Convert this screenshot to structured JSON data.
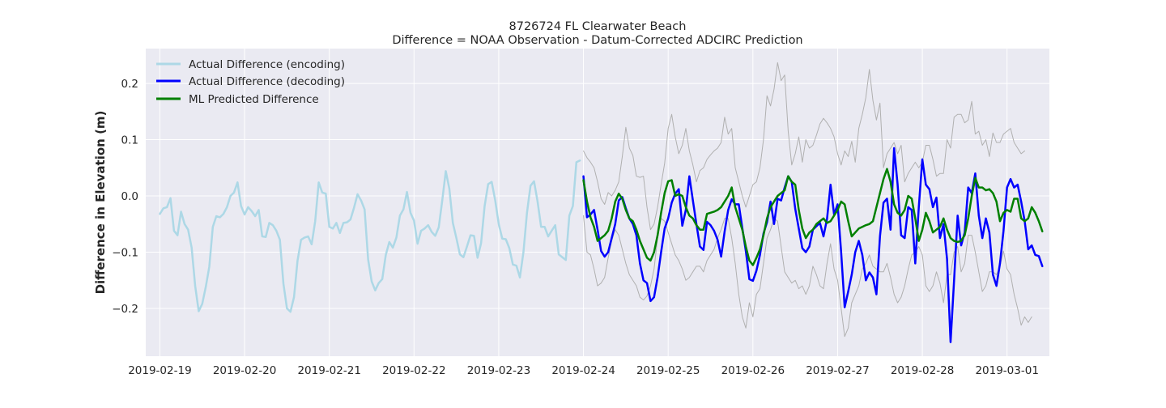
{
  "chart_data": {
    "type": "line",
    "title": "8726724 FL Clearwater Beach",
    "subtitle": "Difference = NOAA Observation - Datum-Corrected ADCIRC Prediction",
    "xlabel": "",
    "ylabel": "Difference in Elevation (m)",
    "xlim": [
      "2019-02-18 20:00",
      "2019-03-01 12:00"
    ],
    "ylim": [
      -0.285,
      0.262
    ],
    "x_tick_labels": [
      "2019-02-19",
      "2019-02-20",
      "2019-02-21",
      "2019-02-22",
      "2019-02-23",
      "2019-02-24",
      "2019-02-25",
      "2019-02-26",
      "2019-02-27",
      "2019-02-28",
      "2019-03-01"
    ],
    "y_ticks": [
      -0.2,
      -0.1,
      0.0,
      0.1,
      0.2
    ],
    "y_tick_labels": [
      "−0.2",
      "−0.1",
      "0.0",
      "0.1",
      "0.2"
    ],
    "grid": true,
    "legend_position": "top-left",
    "colors": {
      "plot_background": "#eaeaf2",
      "grid": "#ffffff",
      "encoding": "#add8e6",
      "decoding": "#0000ff",
      "predicted": "#008000",
      "band": "#b0b0b0"
    },
    "series": [
      {
        "name": "Actual Difference (encoding)",
        "color": "#add8e6",
        "x_start": "2019-02-19 00:00",
        "x_step_hours": 1,
        "y": [
          -0.032,
          -0.022,
          -0.02,
          -0.004,
          -0.062,
          -0.07,
          -0.028,
          -0.05,
          -0.06,
          -0.092,
          -0.16,
          -0.205,
          -0.192,
          -0.162,
          -0.126,
          -0.055,
          -0.036,
          -0.038,
          -0.032,
          -0.02,
          0.0,
          0.006,
          0.024,
          -0.018,
          -0.033,
          -0.02,
          -0.027,
          -0.036,
          -0.025,
          -0.072,
          -0.073,
          -0.048,
          -0.052,
          -0.062,
          -0.078,
          -0.156,
          -0.2,
          -0.206,
          -0.18,
          -0.115,
          -0.078,
          -0.074,
          -0.072,
          -0.086,
          -0.045,
          0.024,
          0.006,
          0.004,
          -0.055,
          -0.058,
          -0.048,
          -0.066,
          -0.048,
          -0.047,
          -0.042,
          -0.021,
          0.003,
          -0.008,
          -0.024,
          -0.113,
          -0.152,
          -0.168,
          -0.155,
          -0.148,
          -0.105,
          -0.082,
          -0.092,
          -0.074,
          -0.035,
          -0.024,
          0.007,
          -0.03,
          -0.044,
          -0.085,
          -0.062,
          -0.058,
          -0.052,
          -0.064,
          -0.071,
          -0.056,
          -0.008,
          0.044,
          0.013,
          -0.048,
          -0.075,
          -0.104,
          -0.109,
          -0.09,
          -0.07,
          -0.071,
          -0.11,
          -0.084,
          -0.018,
          0.021,
          0.025,
          -0.008,
          -0.05,
          -0.076,
          -0.077,
          -0.093,
          -0.122,
          -0.124,
          -0.145,
          -0.1,
          -0.03,
          0.018,
          0.026,
          -0.01,
          -0.055,
          -0.055,
          -0.072,
          -0.062,
          -0.052,
          -0.104,
          -0.109,
          -0.114,
          -0.035,
          -0.018,
          0.06,
          0.063
        ]
      },
      {
        "name": "Actual Difference (decoding)",
        "color": "#0000ff",
        "x_start": "2019-02-24 00:00",
        "x_step_hours": 1,
        "y": [
          0.035,
          -0.038,
          -0.033,
          -0.025,
          -0.06,
          -0.098,
          -0.108,
          -0.1,
          -0.075,
          -0.05,
          -0.008,
          -0.002,
          -0.022,
          -0.04,
          -0.05,
          -0.07,
          -0.12,
          -0.15,
          -0.155,
          -0.187,
          -0.18,
          -0.145,
          -0.1,
          -0.058,
          -0.04,
          -0.012,
          0.004,
          0.012,
          -0.053,
          -0.025,
          0.035,
          -0.008,
          -0.05,
          -0.09,
          -0.096,
          -0.046,
          -0.052,
          -0.062,
          -0.078,
          -0.108,
          -0.063,
          -0.025,
          -0.006,
          -0.015,
          -0.015,
          -0.057,
          -0.098,
          -0.148,
          -0.151,
          -0.133,
          -0.105,
          -0.067,
          -0.047,
          -0.01,
          -0.05,
          -0.005,
          -0.008,
          0.015,
          0.035,
          0.025,
          -0.023,
          -0.058,
          -0.093,
          -0.1,
          -0.09,
          -0.06,
          -0.054,
          -0.048,
          -0.072,
          -0.041,
          0.02,
          -0.033,
          -0.015,
          -0.1,
          -0.198,
          -0.17,
          -0.14,
          -0.1,
          -0.08,
          -0.105,
          -0.15,
          -0.136,
          -0.145,
          -0.175,
          -0.072,
          -0.012,
          -0.005,
          -0.06,
          0.085,
          0.02,
          -0.07,
          -0.075,
          -0.02,
          -0.025,
          -0.12,
          -0.02,
          0.065,
          0.02,
          0.012,
          -0.02,
          -0.003,
          -0.075,
          -0.05,
          -0.112,
          -0.26,
          -0.15,
          -0.035,
          -0.088,
          -0.065,
          0.015,
          0.005,
          0.04,
          -0.035,
          -0.075,
          -0.04,
          -0.065,
          -0.14,
          -0.16,
          -0.12,
          -0.062,
          0.015,
          0.03,
          0.015,
          0.02,
          -0.01,
          -0.045,
          -0.095,
          -0.088,
          -0.105,
          -0.107,
          -0.125
        ]
      },
      {
        "name": "ML Predicted Difference",
        "color": "#008000",
        "x_start": "2019-02-24 00:00",
        "x_step_hours": 1,
        "y": [
          0.028,
          -0.01,
          -0.038,
          -0.055,
          -0.08,
          -0.075,
          -0.07,
          -0.062,
          -0.04,
          -0.01,
          0.004,
          -0.005,
          -0.025,
          -0.04,
          -0.045,
          -0.06,
          -0.08,
          -0.095,
          -0.11,
          -0.115,
          -0.1,
          -0.07,
          -0.03,
          0.005,
          0.026,
          0.028,
          0.0,
          0.003,
          0.0,
          -0.02,
          -0.035,
          -0.04,
          -0.052,
          -0.06,
          -0.06,
          -0.032,
          -0.03,
          -0.028,
          -0.025,
          -0.02,
          -0.01,
          0.0,
          0.015,
          -0.02,
          -0.04,
          -0.06,
          -0.09,
          -0.115,
          -0.123,
          -0.11,
          -0.095,
          -0.07,
          -0.04,
          -0.02,
          -0.01,
          0.0,
          0.005,
          0.01,
          0.035,
          0.025,
          0.02,
          -0.025,
          -0.058,
          -0.075,
          -0.065,
          -0.06,
          -0.05,
          -0.045,
          -0.04,
          -0.048,
          -0.045,
          -0.035,
          -0.025,
          -0.01,
          -0.015,
          -0.045,
          -0.072,
          -0.065,
          -0.058,
          -0.055,
          -0.052,
          -0.05,
          -0.045,
          -0.02,
          0.005,
          0.03,
          0.048,
          0.025,
          -0.015,
          -0.03,
          -0.035,
          -0.025,
          0.0,
          -0.005,
          -0.04,
          -0.08,
          -0.06,
          -0.03,
          -0.045,
          -0.065,
          -0.06,
          -0.055,
          -0.04,
          -0.06,
          -0.075,
          -0.08,
          -0.082,
          -0.08,
          -0.07,
          -0.04,
          0.0,
          0.032,
          0.015,
          0.015,
          0.01,
          0.012,
          0.005,
          -0.01,
          -0.045,
          -0.03,
          -0.025,
          -0.028,
          -0.005,
          -0.005,
          -0.04,
          -0.045,
          -0.04,
          -0.02,
          -0.03,
          -0.045,
          -0.063
        ]
      },
      {
        "name": "",
        "color": "#b0b0b0",
        "x_start": "2019-02-24 00:00",
        "x_step_hours": 1,
        "y": [
          0.08,
          0.068,
          0.06,
          0.05,
          0.025,
          -0.005,
          -0.015,
          0.006,
          0.0,
          0.01,
          0.025,
          0.07,
          0.122,
          0.085,
          0.072,
          0.035,
          0.033,
          0.035,
          -0.02,
          -0.06,
          -0.05,
          -0.02,
          0.02,
          0.058,
          0.12,
          0.145,
          0.105,
          0.075,
          0.09,
          0.12,
          0.08,
          0.055,
          0.025,
          0.045,
          0.05,
          0.065,
          0.073,
          0.08,
          0.085,
          0.095,
          0.14,
          0.11,
          0.12,
          0.05,
          0.025,
          0.0,
          -0.02,
          0.0,
          0.02,
          0.025,
          0.05,
          0.1,
          0.178,
          0.16,
          0.19,
          0.237,
          0.205,
          0.215,
          0.115,
          0.055,
          0.075,
          0.105,
          0.06,
          0.1,
          0.085,
          0.09,
          0.108,
          0.128,
          0.138,
          0.13,
          0.12,
          0.105,
          0.075,
          0.055,
          0.08,
          0.07,
          0.097,
          0.06,
          0.12,
          0.145,
          0.175,
          0.225,
          0.17,
          0.135,
          0.165,
          0.05,
          0.075,
          0.085,
          0.095,
          0.075,
          0.09,
          0.025,
          0.04,
          0.05,
          0.06,
          0.05,
          0.06,
          0.09,
          0.09,
          0.065,
          0.035,
          0.04,
          0.04,
          0.1,
          0.085,
          0.14,
          0.145,
          0.145,
          0.13,
          0.135,
          0.168,
          0.11,
          0.115,
          0.09,
          0.1,
          0.07,
          0.112,
          0.095,
          0.095,
          0.11,
          0.115,
          0.12,
          0.095,
          0.085,
          0.075,
          0.08
        ]
      },
      {
        "name": "",
        "color": "#b0b0b0",
        "x_start": "2019-02-24 00:00",
        "x_step_hours": 1,
        "y": [
          -0.035,
          -0.1,
          -0.105,
          -0.13,
          -0.16,
          -0.155,
          -0.145,
          -0.11,
          -0.08,
          -0.06,
          -0.07,
          -0.095,
          -0.12,
          -0.14,
          -0.15,
          -0.16,
          -0.18,
          -0.185,
          -0.178,
          -0.16,
          -0.13,
          -0.075,
          -0.04,
          -0.045,
          -0.065,
          -0.085,
          -0.105,
          -0.115,
          -0.13,
          -0.15,
          -0.145,
          -0.135,
          -0.125,
          -0.125,
          -0.135,
          -0.115,
          -0.105,
          -0.095,
          -0.075,
          -0.06,
          -0.04,
          -0.04,
          -0.075,
          -0.12,
          -0.175,
          -0.215,
          -0.235,
          -0.19,
          -0.215,
          -0.175,
          -0.165,
          -0.12,
          -0.075,
          -0.06,
          -0.04,
          -0.045,
          -0.09,
          -0.135,
          -0.145,
          -0.155,
          -0.15,
          -0.165,
          -0.16,
          -0.175,
          -0.16,
          -0.125,
          -0.14,
          -0.16,
          -0.165,
          -0.12,
          -0.085,
          -0.13,
          -0.15,
          -0.2,
          -0.25,
          -0.235,
          -0.19,
          -0.175,
          -0.16,
          -0.13,
          -0.12,
          -0.105,
          -0.125,
          -0.13,
          -0.135,
          -0.135,
          -0.12,
          -0.145,
          -0.175,
          -0.19,
          -0.18,
          -0.16,
          -0.13,
          -0.105,
          -0.1,
          -0.09,
          -0.105,
          -0.16,
          -0.17,
          -0.16,
          -0.135,
          -0.155,
          -0.19,
          -0.14,
          -0.14,
          -0.1,
          -0.09,
          -0.135,
          -0.12,
          -0.07,
          -0.07,
          -0.1,
          -0.135,
          -0.17,
          -0.16,
          -0.135,
          -0.135,
          -0.14,
          -0.125,
          -0.098,
          -0.13,
          -0.14,
          -0.175,
          -0.2,
          -0.23,
          -0.215,
          -0.225,
          -0.215
        ]
      }
    ]
  }
}
